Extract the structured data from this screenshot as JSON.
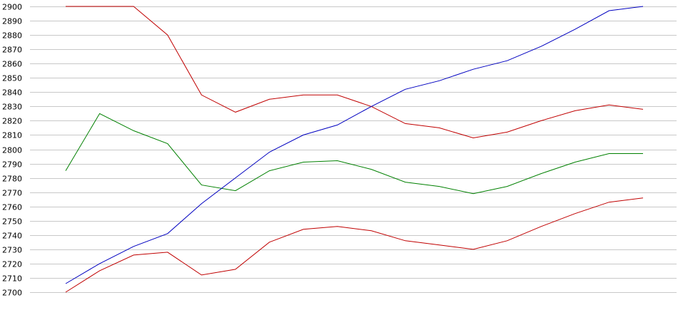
{
  "chart_data": {
    "type": "line",
    "title": "",
    "xlabel": "",
    "ylabel": "",
    "x": [
      1,
      2,
      3,
      4,
      5,
      6,
      7,
      8,
      9,
      10,
      11,
      12,
      13,
      14,
      15,
      16,
      17,
      18
    ],
    "ylim": [
      2700,
      2900
    ],
    "yticks": [
      2700,
      2710,
      2720,
      2730,
      2740,
      2750,
      2760,
      2770,
      2780,
      2790,
      2800,
      2810,
      2820,
      2830,
      2840,
      2850,
      2860,
      2870,
      2880,
      2890,
      2900
    ],
    "grid": true,
    "legend": "none",
    "series": [
      {
        "color": "#c00000",
        "values": [
          2900,
          2900,
          2900,
          2880,
          2838,
          2826,
          2835,
          2838,
          2838,
          2830,
          2818,
          2815,
          2808,
          2812,
          2820,
          2827,
          2831,
          2828
        ]
      },
      {
        "color": "#008000",
        "values": [
          2785,
          2825,
          2813,
          2804,
          2775,
          2771,
          2785,
          2791,
          2792,
          2786,
          2777,
          2774,
          2769,
          2774,
          2783,
          2791,
          2797,
          2797
        ]
      },
      {
        "color": "#c00000",
        "values": [
          2700,
          2715,
          2726,
          2728,
          2712,
          2716,
          2735,
          2744,
          2746,
          2743,
          2736,
          2733,
          2730,
          2736,
          2746,
          2755,
          2763,
          2766
        ]
      },
      {
        "color": "#0000c0",
        "values": [
          2706,
          2720,
          2732,
          2741,
          2762,
          2780,
          2798,
          2810,
          2817,
          2830,
          2842,
          2848,
          2856,
          2862,
          2872,
          2884,
          2897,
          2900
        ]
      }
    ]
  }
}
